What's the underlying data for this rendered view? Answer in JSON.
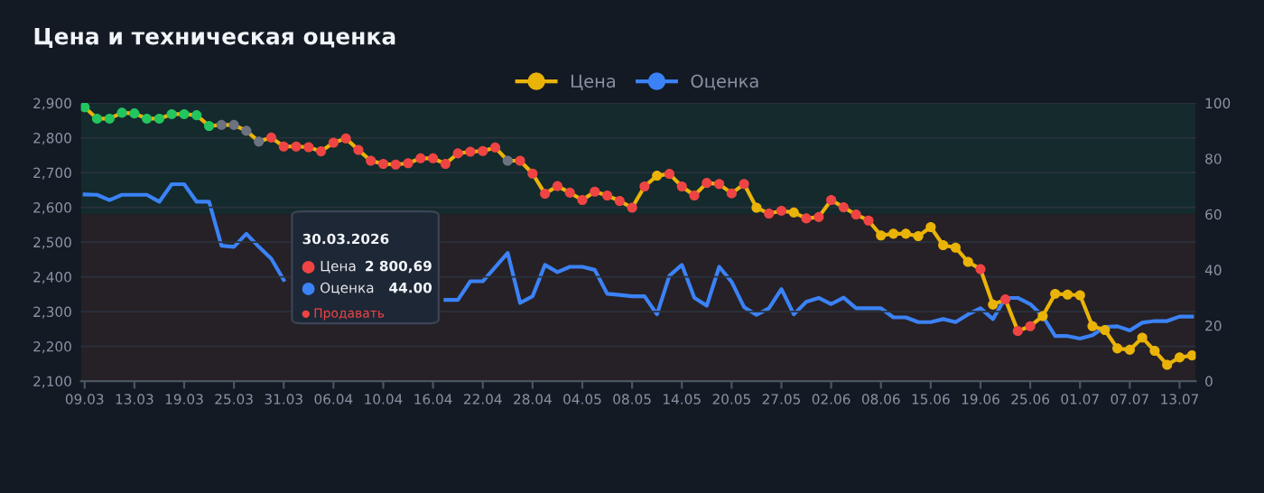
{
  "chart_data": {
    "type": "line",
    "title": "Цена и техническая оценка",
    "categories": [
      "09.03",
      null,
      null,
      null,
      "13.03",
      null,
      null,
      null,
      "19.03",
      null,
      null,
      null,
      "25.03",
      null,
      null,
      null,
      "31.03",
      null,
      null,
      null,
      "06.04",
      null,
      null,
      null,
      "10.04",
      null,
      null,
      null,
      "16.04",
      null,
      null,
      null,
      "22.04",
      null,
      null,
      null,
      "28.04",
      null,
      null,
      null,
      "04.05",
      null,
      null,
      null,
      "08.05",
      null,
      null,
      null,
      "14.05",
      null,
      null,
      null,
      "20.05",
      null,
      null,
      null,
      "27.05",
      null,
      null,
      null,
      "02.06",
      null,
      null,
      null,
      "08.06",
      null,
      null,
      null,
      "15.06",
      null,
      null,
      null,
      "19.06",
      null,
      null,
      null,
      "25.06",
      null,
      null,
      null,
      "01.07",
      null,
      null,
      null,
      "07.07",
      null,
      null,
      null,
      "13.07",
      null
    ],
    "series": [
      {
        "name": "Цена",
        "color": "#eab308",
        "marker": "circle",
        "values": [
          2888,
          2855,
          2855,
          2872,
          2870,
          2855,
          2855,
          2868,
          2868,
          2865,
          2834,
          2837,
          2837,
          2820,
          2789,
          2800.69,
          2775,
          2775,
          2773,
          2761,
          2786,
          2798,
          2765,
          2734,
          2725,
          2723,
          2727,
          2741,
          2741,
          2725,
          2755,
          2760,
          2762,
          2772,
          2734,
          2734,
          2697,
          2639,
          2661,
          2642,
          2621,
          2645,
          2634,
          2618,
          2599,
          2660,
          2691,
          2696,
          2660,
          2634,
          2670,
          2667,
          2640,
          2667,
          2599,
          2582,
          2590,
          2585,
          2568,
          2572,
          2621,
          2600,
          2579,
          2562,
          2519,
          2524,
          2524,
          2517,
          2543,
          2491,
          2484,
          2443,
          2422,
          2320,
          2335,
          2244,
          2258,
          2287,
          2351,
          2349,
          2347,
          2258,
          2247,
          2194,
          2190,
          2225,
          2187,
          2147,
          2168,
          2174
        ],
        "colors": [
          "#22c55e",
          "#22c55e",
          "#22c55e",
          "#22c55e",
          "#22c55e",
          "#22c55e",
          "#22c55e",
          "#22c55e",
          "#22c55e",
          "#22c55e",
          "#22c55e",
          "#6b7280",
          "#6b7280",
          "#6b7280",
          "#6b7280",
          "#ef4444",
          "#ef4444",
          "#ef4444",
          "#ef4444",
          "#ef4444",
          "#ef4444",
          "#ef4444",
          "#ef4444",
          "#ef4444",
          "#ef4444",
          "#ef4444",
          "#ef4444",
          "#ef4444",
          "#ef4444",
          "#ef4444",
          "#ef4444",
          "#ef4444",
          "#ef4444",
          "#ef4444",
          "#6b7280",
          "#ef4444",
          "#ef4444",
          "#ef4444",
          "#ef4444",
          "#ef4444",
          "#ef4444",
          "#ef4444",
          "#ef4444",
          "#ef4444",
          "#ef4444",
          "#ef4444",
          "#eab308",
          "#ef4444",
          "#ef4444",
          "#ef4444",
          "#ef4444",
          "#ef4444",
          "#ef4444",
          "#ef4444",
          "#eab308",
          "#ef4444",
          "#ef4444",
          "#eab308",
          "#ef4444",
          "#ef4444",
          "#ef4444",
          "#ef4444",
          "#ef4444",
          "#ef4444",
          "#eab308",
          "#eab308",
          "#eab308",
          "#eab308",
          "#eab308",
          "#eab308",
          "#eab308",
          "#eab308",
          "#ef4444",
          "#eab308",
          "#ef4444",
          "#ef4444",
          "#ef4444",
          "#eab308",
          "#eab308",
          "#eab308",
          "#eab308",
          "#eab308",
          "#eab308",
          "#eab308",
          "#eab308",
          "#eab308",
          "#eab308",
          "#eab308",
          "#eab308",
          "#eab308"
        ]
      },
      {
        "name": "Оценка",
        "axis": "y2",
        "color": "#3b82f6",
        "marker": "none",
        "values": [
          67.1,
          67,
          65.1,
          67,
          67,
          67,
          64.5,
          70.8,
          70.8,
          64.5,
          64.5,
          48.7,
          48.3,
          53,
          48.3,
          44,
          36.4,
          null,
          null,
          null,
          null,
          null,
          null,
          null,
          null,
          null,
          null,
          null,
          null,
          29.2,
          29.2,
          35.9,
          35.9,
          41,
          46.1,
          28.1,
          30.5,
          41.8,
          39.2,
          41.1,
          41.1,
          40,
          31.4,
          31,
          30.5,
          30.5,
          24,
          37.9,
          41.8,
          30,
          27.1,
          41.1,
          35.7,
          26.6,
          23.8,
          26.2,
          33.1,
          24,
          28.5,
          29.9,
          27.7,
          30,
          26.2,
          26.2,
          26.2,
          22.9,
          22.9,
          21.2,
          21.2,
          22.3,
          21.2,
          24,
          26.2,
          22.3,
          29.9,
          29.9,
          27.7,
          23.4,
          16.2,
          16.2,
          15.3,
          16.5,
          19.5,
          19.7,
          18.2,
          21,
          21.6,
          21.6,
          23.2,
          23.2
        ]
      }
    ],
    "ylim": [
      2100,
      2900
    ],
    "yticks": [
      {
        "value": 2100,
        "label": "2,100"
      },
      {
        "value": 2200,
        "label": "2,200"
      },
      {
        "value": 2300,
        "label": "2,300"
      },
      {
        "value": 2400,
        "label": "2,400"
      },
      {
        "value": 2500,
        "label": "2,500"
      },
      {
        "value": 2600,
        "label": "2,600"
      },
      {
        "value": 2700,
        "label": "2,700"
      },
      {
        "value": 2800,
        "label": "2,800"
      },
      {
        "value": 2900,
        "label": "2,900"
      }
    ],
    "y2lim": [
      0,
      100
    ],
    "y2ticks": [
      0,
      20,
      40,
      60,
      80,
      100
    ],
    "bands": [
      {
        "axis": "y2",
        "from": 60,
        "to": 100,
        "color": "#142a2d"
      },
      {
        "axis": "y2",
        "from": 0,
        "to": 60,
        "color": "#262126"
      }
    ],
    "grid": "y",
    "legend": "top",
    "line_style": "solid",
    "annotations": [
      "30.03.2026",
      "Цена",
      "2 800,69",
      "Оценка",
      "44.00",
      "Продавать"
    ]
  }
}
